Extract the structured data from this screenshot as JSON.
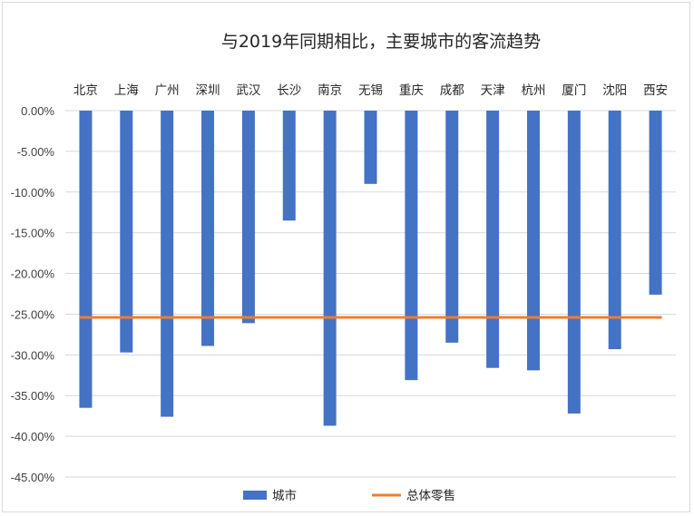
{
  "chart_data": {
    "type": "bar",
    "title": "与2019年同期相比，主要城市的客流趋势",
    "categories": [
      "北京",
      "上海",
      "广州",
      "深圳",
      "武汉",
      "长沙",
      "南京",
      "无锡",
      "重庆",
      "成都",
      "天津",
      "杭州",
      "厦门",
      "沈阳",
      "西安"
    ],
    "series": [
      {
        "name": "城市",
        "type": "bar",
        "color": "#4472c4",
        "values": [
          -36.5,
          -29.7,
          -37.6,
          -28.9,
          -26.1,
          -13.5,
          -38.7,
          -9.0,
          -33.1,
          -28.5,
          -31.6,
          -31.9,
          -37.2,
          -29.3,
          -22.6
        ]
      },
      {
        "name": "总体零售",
        "type": "line",
        "color": "#ed7d31",
        "values": [
          -25.4,
          -25.4,
          -25.4,
          -25.4,
          -25.4,
          -25.4,
          -25.4,
          -25.4,
          -25.4,
          -25.4,
          -25.4,
          -25.4,
          -25.4,
          -25.4,
          -25.4
        ]
      }
    ],
    "yticks": [
      "0.00%",
      "-5.00%",
      "-10.00%",
      "-15.00%",
      "-20.00%",
      "-25.00%",
      "-30.00%",
      "-35.00%",
      "-40.00%",
      "-45.00%"
    ],
    "ylim": [
      -45,
      0
    ],
    "x_axis_position": "top",
    "grid": true,
    "legend_position": "bottom"
  }
}
